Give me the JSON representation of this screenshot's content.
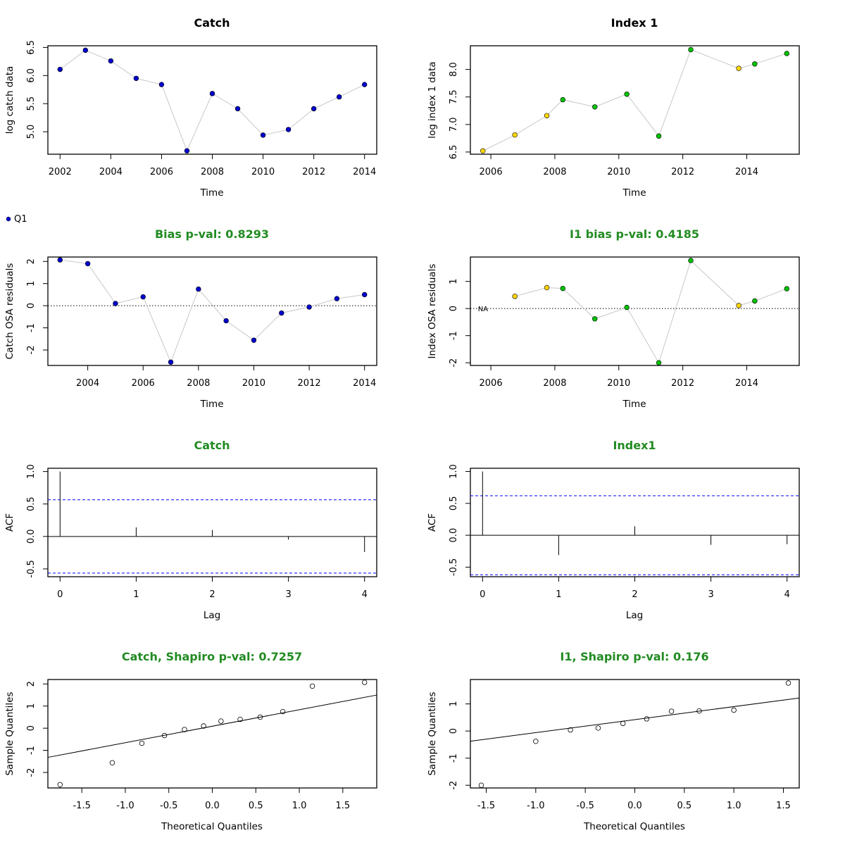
{
  "colors": {
    "title_black": "#000000",
    "title_green": "#228B22",
    "q1_blue": "#0000CD",
    "index_gold": "#FFD700",
    "index_green": "#00C000",
    "connector_line": "#c8c8c8",
    "ci_blue": "#0000FF"
  },
  "legend": {
    "label": "Q1",
    "color": "#0000CD"
  },
  "chart_data": [
    {
      "id": "catch-log",
      "type": "line",
      "title": "Catch",
      "title_color": "#000000",
      "xlabel": "Time",
      "ylabel": "log catch data",
      "xlim": [
        2001.52,
        2014.48
      ],
      "ylim": [
        4.6,
        6.53
      ],
      "xticks": [
        2002,
        2004,
        2006,
        2008,
        2010,
        2012,
        2014
      ],
      "xtick_labels": [
        "2002",
        "2004",
        "2006",
        "2008",
        "2010",
        "2012",
        "2014"
      ],
      "yticks": [
        5.0,
        5.5,
        6.0,
        6.5
      ],
      "ytick_labels": [
        "5.0",
        "5.5",
        "6.0",
        "6.5"
      ],
      "points": [
        {
          "x": 2002,
          "y": 6.11,
          "color": "#0000CD"
        },
        {
          "x": 2003,
          "y": 6.45,
          "color": "#0000CD"
        },
        {
          "x": 2004,
          "y": 6.26,
          "color": "#0000CD"
        },
        {
          "x": 2005,
          "y": 5.95,
          "color": "#0000CD"
        },
        {
          "x": 2006,
          "y": 5.84,
          "color": "#0000CD"
        },
        {
          "x": 2007,
          "y": 4.66,
          "color": "#0000CD"
        },
        {
          "x": 2008,
          "y": 5.68,
          "color": "#0000CD"
        },
        {
          "x": 2009,
          "y": 5.41,
          "color": "#0000CD"
        },
        {
          "x": 2010,
          "y": 4.94,
          "color": "#0000CD"
        },
        {
          "x": 2011,
          "y": 5.04,
          "color": "#0000CD"
        },
        {
          "x": 2012,
          "y": 5.41,
          "color": "#0000CD"
        },
        {
          "x": 2013,
          "y": 5.62,
          "color": "#0000CD"
        },
        {
          "x": 2014,
          "y": 5.84,
          "color": "#0000CD"
        }
      ]
    },
    {
      "id": "index1-log",
      "type": "line",
      "title": "Index 1",
      "title_color": "#000000",
      "xlabel": "Time",
      "ylabel": "log index 1 data",
      "xlim": [
        2005.36,
        2015.64
      ],
      "ylim": [
        6.46,
        8.43
      ],
      "xticks": [
        2006,
        2008,
        2010,
        2012,
        2014
      ],
      "xtick_labels": [
        "2006",
        "2008",
        "2010",
        "2012",
        "2014"
      ],
      "yticks": [
        6.5,
        7.0,
        7.5,
        8.0
      ],
      "ytick_labels": [
        "6.5",
        "7.0",
        "7.5",
        "8.0"
      ],
      "points": [
        {
          "x": 2005.75,
          "y": 6.52,
          "color": "#FFD700"
        },
        {
          "x": 2006.75,
          "y": 6.81,
          "color": "#FFD700"
        },
        {
          "x": 2007.75,
          "y": 7.16,
          "color": "#FFD700"
        },
        {
          "x": 2008.25,
          "y": 7.45,
          "color": "#00C000"
        },
        {
          "x": 2009.25,
          "y": 7.32,
          "color": "#00C000"
        },
        {
          "x": 2010.25,
          "y": 7.55,
          "color": "#00C000"
        },
        {
          "x": 2011.25,
          "y": 6.79,
          "color": "#00C000"
        },
        {
          "x": 2012.25,
          "y": 8.36,
          "color": "#00C000"
        },
        {
          "x": 2013.75,
          "y": 8.02,
          "color": "#FFD700"
        },
        {
          "x": 2014.25,
          "y": 8.1,
          "color": "#00C000"
        },
        {
          "x": 2015.25,
          "y": 8.29,
          "color": "#00C000"
        }
      ]
    },
    {
      "id": "catch-osa",
      "type": "line",
      "title": "Bias p-val: 0.8293",
      "title_color": "#228B22",
      "xlabel": "Time",
      "ylabel": "Catch OSA residuals",
      "xlim": [
        2002.56,
        2014.44
      ],
      "ylim": [
        -2.7,
        2.2
      ],
      "hline": 0,
      "xticks": [
        2004,
        2006,
        2008,
        2010,
        2012,
        2014
      ],
      "xtick_labels": [
        "2004",
        "2006",
        "2008",
        "2010",
        "2012",
        "2014"
      ],
      "yticks": [
        -2,
        -1,
        0,
        1,
        2
      ],
      "ytick_labels": [
        "-2",
        "-1",
        "0",
        "1",
        "2"
      ],
      "points": [
        {
          "x": 2003,
          "y": 2.07,
          "color": "#0000CD"
        },
        {
          "x": 2004,
          "y": 1.9,
          "color": "#0000CD"
        },
        {
          "x": 2005,
          "y": 0.1,
          "color": "#0000CD"
        },
        {
          "x": 2006,
          "y": 0.4,
          "color": "#0000CD"
        },
        {
          "x": 2007,
          "y": -2.55,
          "color": "#0000CD"
        },
        {
          "x": 2008,
          "y": 0.75,
          "color": "#0000CD"
        },
        {
          "x": 2009,
          "y": -0.68,
          "color": "#0000CD"
        },
        {
          "x": 2010,
          "y": -1.56,
          "color": "#0000CD"
        },
        {
          "x": 2011,
          "y": -0.33,
          "color": "#0000CD"
        },
        {
          "x": 2012,
          "y": -0.06,
          "color": "#0000CD"
        },
        {
          "x": 2013,
          "y": 0.32,
          "color": "#0000CD"
        },
        {
          "x": 2014,
          "y": 0.5,
          "color": "#0000CD"
        }
      ]
    },
    {
      "id": "index1-osa",
      "type": "line",
      "title": "I1 bias p-val: 0.4185",
      "title_color": "#228B22",
      "xlabel": "Time",
      "ylabel": "Index OSA residuals",
      "xlim": [
        2005.36,
        2015.64
      ],
      "ylim": [
        -2.1,
        1.9
      ],
      "hline": 0,
      "na_label": {
        "x": 2005.75,
        "y": 0,
        "text": "NA"
      },
      "xticks": [
        2006,
        2008,
        2010,
        2012,
        2014
      ],
      "xtick_labels": [
        "2006",
        "2008",
        "2010",
        "2012",
        "2014"
      ],
      "yticks": [
        -2,
        -1,
        0,
        1
      ],
      "ytick_labels": [
        "-2",
        "-1",
        "0",
        "1"
      ],
      "points": [
        {
          "x": 2006.75,
          "y": 0.45,
          "color": "#FFD700"
        },
        {
          "x": 2007.75,
          "y": 0.77,
          "color": "#FFD700"
        },
        {
          "x": 2008.25,
          "y": 0.74,
          "color": "#00C000"
        },
        {
          "x": 2009.25,
          "y": -0.38,
          "color": "#00C000"
        },
        {
          "x": 2010.25,
          "y": 0.04,
          "color": "#00C000"
        },
        {
          "x": 2011.25,
          "y": -2.0,
          "color": "#00C000"
        },
        {
          "x": 2012.25,
          "y": 1.77,
          "color": "#00C000"
        },
        {
          "x": 2013.75,
          "y": 0.11,
          "color": "#FFD700"
        },
        {
          "x": 2014.25,
          "y": 0.28,
          "color": "#00C000"
        },
        {
          "x": 2015.25,
          "y": 0.73,
          "color": "#00C000"
        }
      ]
    },
    {
      "id": "catch-acf",
      "type": "bar",
      "title": "Catch",
      "title_color": "#228B22",
      "xlabel": "Lag",
      "ylabel": "ACF",
      "xlim": [
        -0.16,
        4.16
      ],
      "ylim": [
        -0.62,
        1.05
      ],
      "zero_line": 0,
      "ci": 0.565,
      "xticks": [
        0,
        1,
        2,
        3,
        4
      ],
      "xtick_labels": [
        "0",
        "1",
        "2",
        "3",
        "4"
      ],
      "yticks": [
        -0.5,
        0.0,
        0.5,
        1.0
      ],
      "ytick_labels": [
        "-0.5",
        "0.0",
        "0.5",
        "1.0"
      ],
      "lags": [
        0,
        1,
        2,
        3,
        4
      ],
      "values": [
        1.0,
        0.14,
        0.1,
        -0.05,
        -0.24
      ]
    },
    {
      "id": "index1-acf",
      "type": "bar",
      "title": "Index1",
      "title_color": "#228B22",
      "xlabel": "Lag",
      "ylabel": "ACF",
      "xlim": [
        -0.16,
        4.16
      ],
      "ylim": [
        -0.65,
        1.05
      ],
      "zero_line": 0,
      "ci": 0.62,
      "xticks": [
        0,
        1,
        2,
        3,
        4
      ],
      "xtick_labels": [
        "0",
        "1",
        "2",
        "3",
        "4"
      ],
      "yticks": [
        -0.5,
        0.0,
        0.5,
        1.0
      ],
      "ytick_labels": [
        "-0.5",
        "0.0",
        "0.5",
        "1.0"
      ],
      "lags": [
        0,
        1,
        2,
        3,
        4
      ],
      "values": [
        1.0,
        -0.31,
        0.14,
        -0.15,
        -0.14
      ]
    },
    {
      "id": "catch-qq",
      "type": "scatter",
      "title": "Catch, Shapiro p-val: 0.7257",
      "title_color": "#228B22",
      "xlabel": "Theoretical Quantiles",
      "ylabel": "Sample Quantiles",
      "xlim": [
        -1.89,
        1.89
      ],
      "ylim": [
        -2.7,
        2.2
      ],
      "qq_line": {
        "slope": 0.745,
        "intercept": 0.09
      },
      "xticks": [
        -1.5,
        -1.0,
        -0.5,
        0.0,
        0.5,
        1.0,
        1.5
      ],
      "xtick_labels": [
        "-1.5",
        "-1.0",
        "-0.5",
        "0.0",
        "0.5",
        "1.0",
        "1.5"
      ],
      "yticks": [
        -2,
        -1,
        0,
        1,
        2
      ],
      "ytick_labels": [
        "-2",
        "-1",
        "0",
        "1",
        "2"
      ],
      "x": [
        -1.75,
        -1.15,
        -0.81,
        -0.55,
        -0.32,
        -0.1,
        0.1,
        0.32,
        0.55,
        0.81,
        1.15,
        1.75
      ],
      "y": [
        -2.55,
        -1.56,
        -0.68,
        -0.33,
        -0.06,
        0.1,
        0.32,
        0.4,
        0.5,
        0.75,
        1.9,
        2.07
      ]
    },
    {
      "id": "index1-qq",
      "type": "scatter",
      "title": "I1, Shapiro p-val: 0.176",
      "title_color": "#228B22",
      "xlabel": "Theoretical Quantiles",
      "ylabel": "Sample Quantiles",
      "xlim": [
        -1.66,
        1.66
      ],
      "ylim": [
        -2.1,
        1.9
      ],
      "qq_line": {
        "slope": 0.48,
        "intercept": 0.42
      },
      "xticks": [
        -1.5,
        -1.0,
        -0.5,
        0.0,
        0.5,
        1.0,
        1.5
      ],
      "xtick_labels": [
        "-1.5",
        "-1.0",
        "-0.5",
        "0.0",
        "0.5",
        "1.0",
        "1.5"
      ],
      "yticks": [
        -2,
        -1,
        0,
        1
      ],
      "ytick_labels": [
        "-2",
        "-1",
        "0",
        "1"
      ],
      "x": [
        -1.55,
        -1.0,
        -0.65,
        -0.37,
        -0.12,
        0.12,
        0.37,
        0.65,
        1.0,
        1.55
      ],
      "y": [
        -2.0,
        -0.38,
        0.04,
        0.11,
        0.28,
        0.45,
        0.73,
        0.74,
        0.77,
        1.77
      ]
    }
  ]
}
